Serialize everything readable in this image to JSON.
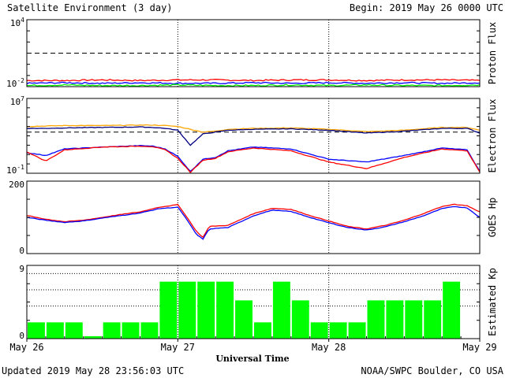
{
  "header": {
    "title": "Satellite Environment (3 day)",
    "begin": "Begin:  2019 May 26 0000 UTC"
  },
  "footer": {
    "updated": "Updated 2019 May 28 23:56:03 UTC",
    "credit": "NOAA/SWPC Boulder, CO USA",
    "xlabel": "Universal Time"
  },
  "colors": {
    "red": "#ff0000",
    "blue": "#0000ff",
    "green": "#00ee00",
    "orange": "#ffa500",
    "navy": "#000080",
    "bar": "#00ff00"
  },
  "chart_data": [
    {
      "type": "line",
      "ylabel": "Proton Flux",
      "scale": "log",
      "ylim": [
        -2,
        4
      ],
      "yticks": [
        {
          "v": 4,
          "base": "10",
          "exp": "4"
        },
        {
          "v": -2,
          "base": "10",
          "exp": "-2"
        }
      ],
      "threshold": [
        1
      ],
      "x": [
        0,
        6,
        12,
        18,
        24,
        30,
        36,
        42,
        48,
        54,
        60,
        66,
        72
      ],
      "series": [
        {
          "color": "#ff0000",
          "values": [
            -1.45,
            -1.45,
            -1.4,
            -1.45,
            -1.4,
            -1.4,
            -1.45,
            -1.4,
            -1.4,
            -1.45,
            -1.4,
            -1.4,
            -1.45
          ]
        },
        {
          "color": "#0000ff",
          "values": [
            -1.7,
            -1.65,
            -1.7,
            -1.65,
            -1.7,
            -1.7,
            -1.65,
            -1.7,
            -1.65,
            -1.7,
            -1.65,
            -1.7,
            -1.65
          ]
        },
        {
          "color": "#00ee00",
          "values": [
            -1.9,
            -1.85,
            -1.9,
            -1.9,
            -1.85,
            -1.9,
            -1.9,
            -1.85,
            -1.9,
            -1.85,
            -1.9,
            -1.9,
            -1.85
          ]
        }
      ]
    },
    {
      "type": "line",
      "ylabel": "Electron Flux",
      "scale": "log",
      "ylim": [
        -1,
        7
      ],
      "yticks": [
        {
          "v": 7,
          "base": "10",
          "exp": "7"
        },
        {
          "v": -1,
          "base": "10",
          "exp": "-1"
        }
      ],
      "threshold": [
        3.4
      ],
      "x": [
        0,
        3,
        6,
        12,
        18,
        20,
        22,
        24,
        26,
        28,
        30,
        32,
        36,
        42,
        48,
        54,
        60,
        66,
        70,
        72
      ],
      "series": [
        {
          "color": "#ffa500",
          "values": [
            4.0,
            4.05,
            4.1,
            4.1,
            4.15,
            4.15,
            4.1,
            4.0,
            3.7,
            3.4,
            3.5,
            3.7,
            3.8,
            3.85,
            3.7,
            3.45,
            3.6,
            3.9,
            3.9,
            3.6
          ]
        },
        {
          "color": "#000080",
          "values": [
            3.8,
            3.8,
            3.85,
            3.9,
            3.95,
            3.9,
            3.8,
            3.6,
            2.0,
            3.2,
            3.4,
            3.6,
            3.7,
            3.75,
            3.6,
            3.3,
            3.5,
            3.8,
            3.8,
            3.3
          ]
        },
        {
          "color": "#0000ff",
          "values": [
            1.2,
            0.9,
            1.6,
            1.8,
            1.95,
            1.9,
            1.6,
            0.8,
            -0.8,
            0.5,
            0.7,
            1.4,
            1.8,
            1.6,
            0.5,
            0.2,
            0.9,
            1.7,
            1.5,
            -0.8
          ]
        },
        {
          "color": "#ff0000",
          "values": [
            1.3,
            0.3,
            1.5,
            1.8,
            1.9,
            1.85,
            1.5,
            0.6,
            -0.9,
            0.4,
            0.6,
            1.3,
            1.7,
            1.4,
            0.2,
            -0.5,
            0.7,
            1.6,
            1.4,
            -0.9
          ]
        }
      ]
    },
    {
      "type": "line",
      "ylabel": "GOES Hp",
      "scale": "linear",
      "ylim": [
        0,
        200
      ],
      "yticks": [
        {
          "v": 200,
          "label": "200"
        },
        {
          "v": 0,
          "label": "0"
        }
      ],
      "threshold": [],
      "x": [
        0,
        3,
        6,
        9,
        12,
        15,
        18,
        21,
        24,
        25,
        27,
        28,
        29,
        32,
        36,
        39,
        42,
        45,
        48,
        51,
        54,
        57,
        60,
        63,
        66,
        68,
        70,
        72
      ],
      "series": [
        {
          "color": "#ff0000",
          "values": [
            105,
            95,
            88,
            92,
            100,
            108,
            115,
            128,
            135,
            112,
            60,
            45,
            75,
            78,
            110,
            125,
            122,
            105,
            90,
            75,
            68,
            78,
            92,
            110,
            130,
            136,
            132,
            115
          ]
        },
        {
          "color": "#0000ff",
          "values": [
            100,
            92,
            86,
            90,
            98,
            105,
            112,
            124,
            128,
            105,
            52,
            40,
            68,
            72,
            104,
            120,
            116,
            100,
            85,
            72,
            65,
            74,
            88,
            104,
            124,
            130,
            126,
            100
          ]
        }
      ]
    },
    {
      "type": "bar",
      "ylabel": "Estimated Kp",
      "ylim": [
        0,
        9
      ],
      "yticks": [
        {
          "v": 9,
          "label": "9"
        },
        {
          "v": 0,
          "label": "0"
        }
      ],
      "gridlines": [
        4,
        6,
        8
      ],
      "color": "#00ff00",
      "values": [
        2,
        2,
        2,
        0.3,
        2,
        2,
        2,
        7,
        7,
        7,
        7,
        4.7,
        2,
        7,
        4.7,
        2,
        2,
        2,
        4.7,
        4.7,
        4.7,
        4.7,
        7,
        0
      ],
      "x_tick_labels": [
        "May 26",
        "May 27",
        "May 28",
        "May 29"
      ]
    }
  ]
}
